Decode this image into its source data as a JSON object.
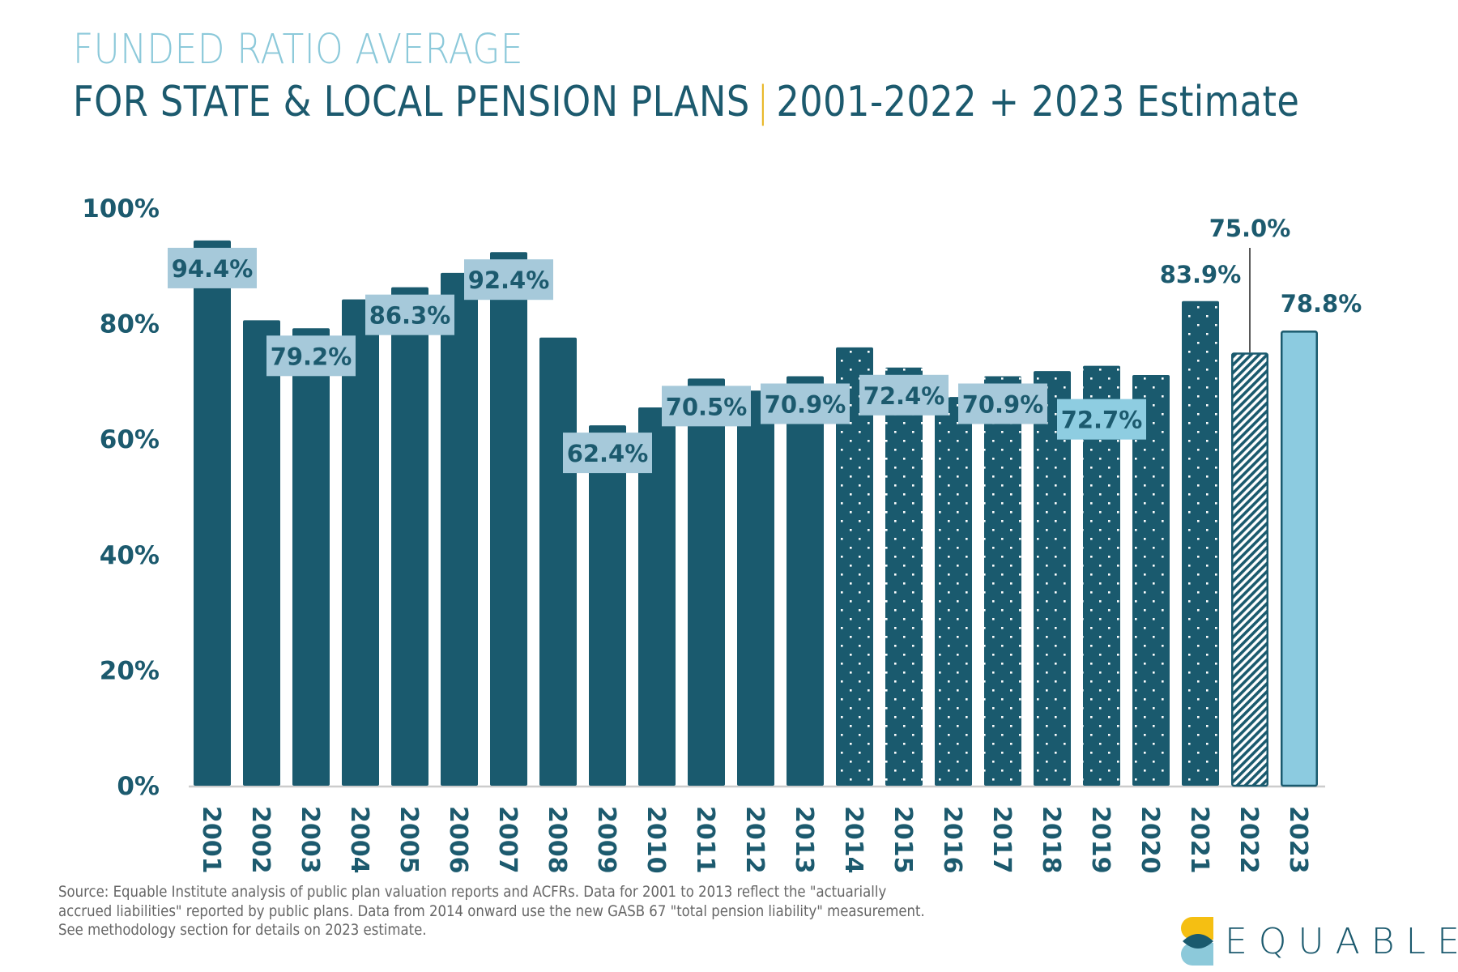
{
  "header": {
    "title_line1": "FUNDED RATIO AVERAGE",
    "title_line2_main": "FOR STATE & LOCAL PENSION PLANS",
    "title_line2_separator": "|",
    "title_line2_range": "2001-2022 + 2023 Estimate"
  },
  "colors": {
    "bar_dark": "#1a5a6e",
    "bar_estimate": "#8ccbe0",
    "label_box": "#a6c9da",
    "label_box_alt": "#8ecde1",
    "accent_yellow": "#e8b623",
    "title_light": "#8cc9da",
    "axis_line": "#cccccc"
  },
  "chart_data": {
    "type": "bar",
    "title": "FUNDED RATIO AVERAGE FOR STATE & LOCAL PENSION PLANS | 2001-2022 + 2023 Estimate",
    "xlabel": "",
    "ylabel": "",
    "ylim": [
      0,
      100
    ],
    "y_ticks": [
      0,
      20,
      40,
      60,
      80,
      100
    ],
    "y_tick_labels": [
      "0%",
      "20%",
      "40%",
      "60%",
      "80%",
      "100%"
    ],
    "grid": false,
    "legend": null,
    "categories": [
      "2001",
      "2002",
      "2003",
      "2004",
      "2005",
      "2006",
      "2007",
      "2008",
      "2009",
      "2010",
      "2011",
      "2012",
      "2013",
      "2014",
      "2015",
      "2016",
      "2017",
      "2018",
      "2019",
      "2020",
      "2021",
      "2022",
      "2023"
    ],
    "values": [
      94.4,
      80.6,
      79.2,
      84.2,
      86.3,
      88.8,
      92.4,
      77.6,
      62.4,
      65.5,
      70.5,
      68.4,
      70.9,
      75.9,
      72.4,
      67.3,
      70.9,
      71.8,
      72.7,
      71.1,
      83.9,
      75.0,
      78.8
    ],
    "bar_styles": [
      "solid",
      "solid",
      "solid",
      "solid",
      "solid",
      "solid",
      "solid",
      "solid",
      "solid",
      "solid",
      "solid",
      "solid",
      "solid",
      "dotted",
      "dotted",
      "dotted",
      "dotted",
      "dotted",
      "dotted",
      "dotted",
      "dotted",
      "hatched",
      "estimate"
    ],
    "data_labels": [
      {
        "index": 0,
        "text": "94.4%",
        "style": "box"
      },
      {
        "index": 2,
        "text": "79.2%",
        "style": "box"
      },
      {
        "index": 4,
        "text": "86.3%",
        "style": "box"
      },
      {
        "index": 6,
        "text": "92.4%",
        "style": "box"
      },
      {
        "index": 8,
        "text": "62.4%",
        "style": "box"
      },
      {
        "index": 10,
        "text": "70.5%",
        "style": "box"
      },
      {
        "index": 12,
        "text": "70.9%",
        "style": "box"
      },
      {
        "index": 14,
        "text": "72.4%",
        "style": "box"
      },
      {
        "index": 16,
        "text": "70.9%",
        "style": "box"
      },
      {
        "index": 18,
        "text": "72.7%",
        "style": "box-alt"
      },
      {
        "index": 20,
        "text": "83.9%",
        "style": "above"
      },
      {
        "index": 21,
        "text": "75.0%",
        "style": "leader"
      },
      {
        "index": 22,
        "text": "78.8%",
        "style": "above"
      }
    ],
    "notes": {
      "2001-2013": "actuarially accrued liabilities",
      "2014-2022": "GASB 67 total pension liability (dotted)",
      "2023": "estimate"
    }
  },
  "footer": {
    "source_lines": [
      "Source: Equable Institute analysis of public plan valuation reports and ACFRs. Data for 2001 to 2013 reflect the \"actuarially",
      "accrued liabilities\" reported by public plans. Data from 2014 onward use the new GASB 67 \"total pension liability\" measurement.",
      "See methodology section for details on 2023 estimate."
    ],
    "logo_text": "EQUABLE"
  }
}
